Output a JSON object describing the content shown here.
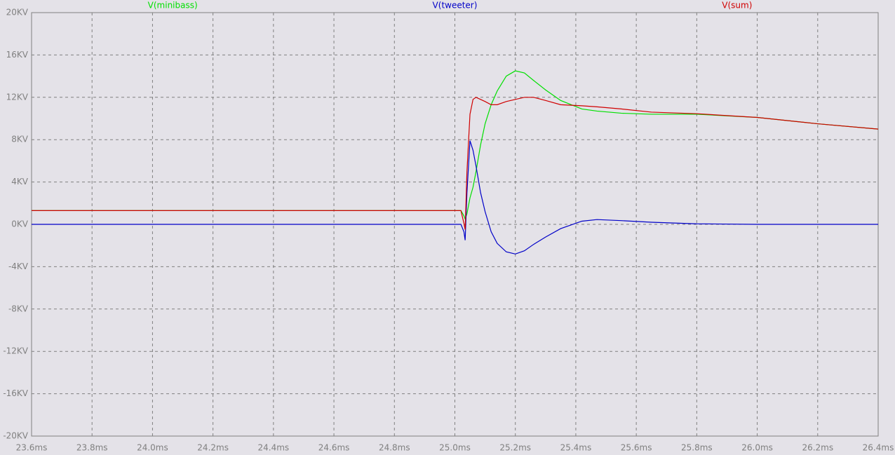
{
  "chart_data": {
    "type": "line",
    "x": [
      23.6,
      25.0,
      25.02,
      25.03,
      25.034,
      25.04,
      25.05,
      25.06,
      25.07,
      25.085,
      25.1,
      25.12,
      25.14,
      25.17,
      25.2,
      25.23,
      25.26,
      25.3,
      25.35,
      25.42,
      25.47,
      25.55,
      25.65,
      25.8,
      26.0,
      26.2,
      26.4
    ],
    "series": [
      {
        "name": "V(minibass)",
        "color": "#00e000",
        "values": [
          1.3,
          1.3,
          1.3,
          0.8,
          0.5,
          1.0,
          2.5,
          3.5,
          5.0,
          7.5,
          9.5,
          11.3,
          12.6,
          14.0,
          14.5,
          14.3,
          13.6,
          12.7,
          11.7,
          10.9,
          10.7,
          10.5,
          10.4,
          10.4,
          10.1,
          9.5,
          9.0
        ]
      },
      {
        "name": "V(tweeter)",
        "color": "#0000c8",
        "values": [
          0,
          0,
          0,
          -0.7,
          -1.5,
          3.0,
          7.9,
          7.0,
          5.5,
          3.0,
          1.2,
          -0.7,
          -1.8,
          -2.6,
          -2.8,
          -2.5,
          -1.9,
          -1.2,
          -0.4,
          0.3,
          0.45,
          0.35,
          0.2,
          0.05,
          0,
          0,
          0
        ]
      },
      {
        "name": "V(sum)",
        "color": "#d00000",
        "values": [
          1.3,
          1.3,
          1.3,
          0.1,
          -0.5,
          5.0,
          10.4,
          11.8,
          12.0,
          11.8,
          11.6,
          11.3,
          11.3,
          11.6,
          11.8,
          12.0,
          12.0,
          11.7,
          11.3,
          11.2,
          11.1,
          10.9,
          10.6,
          10.45,
          10.1,
          9.5,
          9.0
        ]
      }
    ],
    "xlim": [
      23.6,
      26.4
    ],
    "xticks": [
      {
        "value": 23.6,
        "label": "23.6ms"
      },
      {
        "value": 23.8,
        "label": "23.8ms"
      },
      {
        "value": 24.0,
        "label": "24.0ms"
      },
      {
        "value": 24.2,
        "label": "24.2ms"
      },
      {
        "value": 24.4,
        "label": "24.4ms"
      },
      {
        "value": 24.6,
        "label": "24.6ms"
      },
      {
        "value": 24.8,
        "label": "24.8ms"
      },
      {
        "value": 25.0,
        "label": "25.0ms"
      },
      {
        "value": 25.2,
        "label": "25.2ms"
      },
      {
        "value": 25.4,
        "label": "25.4ms"
      },
      {
        "value": 25.6,
        "label": "25.6ms"
      },
      {
        "value": 25.8,
        "label": "25.8ms"
      },
      {
        "value": 26.0,
        "label": "26.0ms"
      },
      {
        "value": 26.2,
        "label": "26.2ms"
      },
      {
        "value": 26.4,
        "label": "26.4ms"
      }
    ],
    "ylim": [
      -20,
      20
    ],
    "yticks": [
      {
        "value": 20,
        "label": "20KV"
      },
      {
        "value": 16,
        "label": "16KV"
      },
      {
        "value": 12,
        "label": "12KV"
      },
      {
        "value": 8,
        "label": "8KV"
      },
      {
        "value": 4,
        "label": "4KV"
      },
      {
        "value": 0,
        "label": "0KV"
      },
      {
        "value": -4,
        "label": "-4KV"
      },
      {
        "value": -8,
        "label": "-8KV"
      },
      {
        "value": -12,
        "label": "-12KV"
      },
      {
        "value": -16,
        "label": "-16KV"
      },
      {
        "value": -20,
        "label": "-20KV"
      }
    ],
    "grid": true
  }
}
